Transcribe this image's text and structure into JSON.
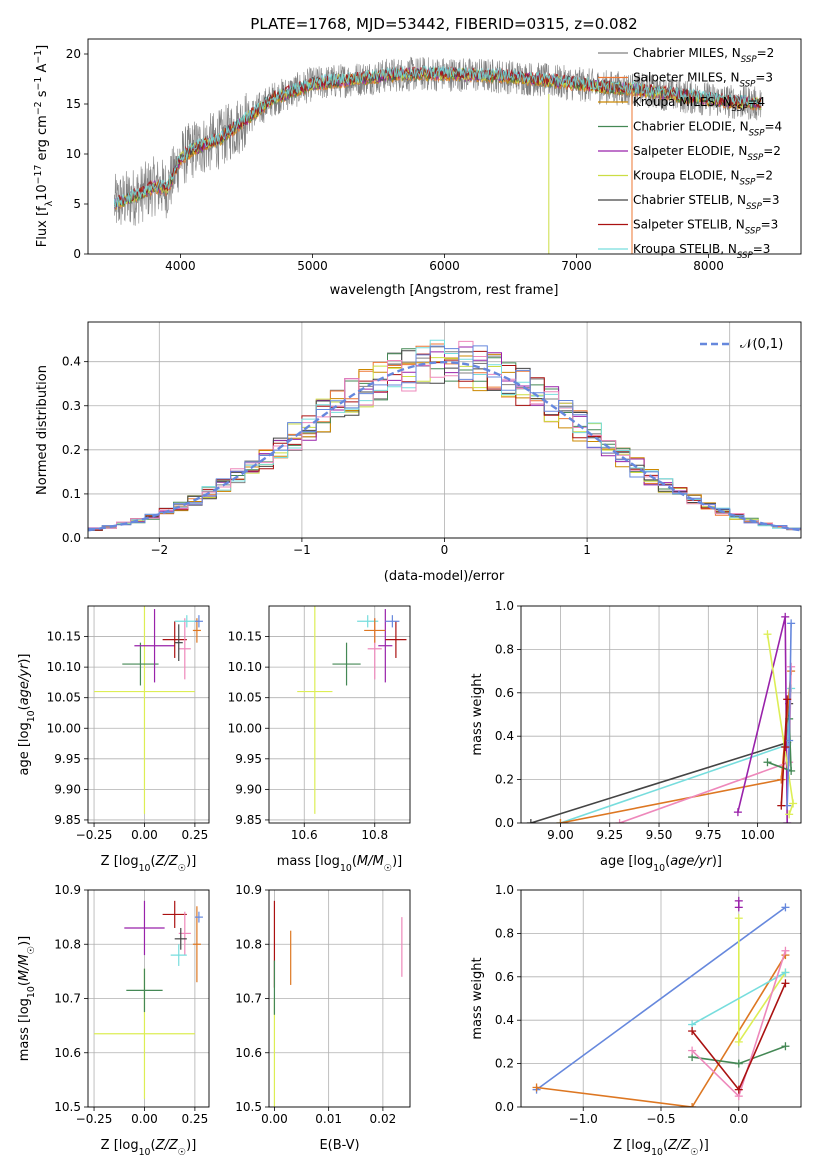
{
  "figure_title": "PLATE=1768, MJD=53442, FIBERID=0315, z=0.082",
  "model_colors": {
    "Chabrier MILES": "#808080",
    "Salpeter MILES": "#ee7733",
    "Kroupa MILES": "#cc8800",
    "Chabrier ELODIE": "#448855",
    "Salpeter ELODIE": "#9922aa",
    "Kroupa ELODIE": "#ccdd44",
    "Chabrier STELIB": "#444444",
    "Salpeter STELIB": "#aa1111",
    "Kroupa STELIB": "#77dddd",
    "pink": "#ee88bb",
    "blue": "#6688dd",
    "orange": "#dd7722",
    "lime": "#ddee55"
  },
  "chart_data": [
    {
      "id": "spectrum",
      "type": "line",
      "xlabel": "wavelength [Angstrom, rest frame]",
      "ylabel": "Flux [f_λ10^-17 erg cm^-2 s^-1 A^-1]",
      "xlim": [
        3300,
        8700
      ],
      "ylim": [
        0,
        21.5
      ],
      "xticks": [
        4000,
        5000,
        6000,
        7000,
        8000
      ],
      "yticks": [
        0,
        5,
        10,
        15,
        20
      ],
      "grid": false,
      "legend_position": "top-right",
      "legend": [
        {
          "name": "Chabrier MILES, N",
          "sub": "SSP",
          "suffix": "=2",
          "color": "#808080"
        },
        {
          "name": "Salpeter MILES, N",
          "sub": "SSP",
          "suffix": "=3",
          "color": "#ee7733"
        },
        {
          "name": "Kroupa MILES, N",
          "sub": "SSP",
          "suffix": "=4",
          "color": "#cc8800"
        },
        {
          "name": "Chabrier ELODIE, N",
          "sub": "SSP",
          "suffix": "=4",
          "color": "#448855"
        },
        {
          "name": "Salpeter ELODIE, N",
          "sub": "SSP",
          "suffix": "=2",
          "color": "#9922aa"
        },
        {
          "name": "Kroupa ELODIE, N",
          "sub": "SSP",
          "suffix": "=2",
          "color": "#ccdd44"
        },
        {
          "name": "Chabrier STELIB, N",
          "sub": "SSP",
          "suffix": "=3",
          "color": "#444444"
        },
        {
          "name": "Salpeter STELIB, N",
          "sub": "SSP",
          "suffix": "=3",
          "color": "#aa1111"
        },
        {
          "name": "Kroupa STELIB, N",
          "sub": "SSP",
          "suffix": "=3",
          "color": "#77dddd"
        }
      ],
      "continuum": {
        "x": [
          3500,
          3600,
          3700,
          3800,
          3900,
          4000,
          4100,
          4200,
          4300,
          4400,
          4500,
          4600,
          4700,
          4800,
          4900,
          5000,
          5200,
          5400,
          5600,
          5800,
          6000,
          6200,
          6400,
          6600,
          6800,
          7000,
          7200,
          7400,
          7600,
          7800,
          8000,
          8200,
          8400
        ],
        "y": [
          5.0,
          5.5,
          6.0,
          6.8,
          6.5,
          9.5,
          10.5,
          11.0,
          11.5,
          12.5,
          13.5,
          14.5,
          15.5,
          16.0,
          16.5,
          17.0,
          17.3,
          17.6,
          17.9,
          18.0,
          18.0,
          17.9,
          17.8,
          17.6,
          17.3,
          17.0,
          16.7,
          16.5,
          16.2,
          15.8,
          15.5,
          15.2,
          15.0
        ]
      },
      "dropouts": [
        {
          "x": 6790,
          "y_from": 16.0,
          "y_to": 0,
          "color": "#ccdd44"
        },
        {
          "x": 7420,
          "y_from": 16.5,
          "y_to": 0,
          "color": "#ee7733"
        }
      ]
    },
    {
      "id": "residual_histogram",
      "type": "histogram",
      "xlabel": "(data-model)/error",
      "ylabel": "Normed distribution",
      "xlim": [
        -2.5,
        2.5
      ],
      "ylim": [
        0,
        0.49
      ],
      "xticks": [
        -2,
        -1,
        0,
        1,
        2
      ],
      "yticks": [
        0.0,
        0.1,
        0.2,
        0.3,
        0.4
      ],
      "grid": true,
      "legend_position": "top-right",
      "legend": [
        {
          "name": "𝒩(0,1)",
          "color": "#6688dd",
          "style": "dashed"
        }
      ],
      "bin_width": 0.1,
      "bin_start": -2.5,
      "reference_curve": {
        "name": "𝒩(0,1)",
        "mean": 0,
        "sigma": 1,
        "color": "#6688dd"
      }
    },
    {
      "id": "age_vs_Z",
      "type": "errorbar",
      "xlabel": "Z [log10(Z/Z☉)]",
      "ylabel": "age [log10(age/yr)]",
      "xlim": [
        -0.28,
        0.32
      ],
      "ylim": [
        9.845,
        10.2
      ],
      "xticks": [
        -0.25,
        0.0,
        0.25
      ],
      "yticks": [
        9.85,
        9.9,
        9.95,
        10.0,
        10.05,
        10.1,
        10.15
      ],
      "grid": true,
      "points": [
        {
          "x": 0.0,
          "y": 10.06,
          "xerr": 0.25,
          "yerr": 0.2,
          "color": "#ddee55"
        },
        {
          "x": -0.02,
          "y": 10.105,
          "xerr": 0.09,
          "yerr": 0.035,
          "color": "#448855"
        },
        {
          "x": 0.05,
          "y": 10.135,
          "xerr": 0.1,
          "yerr": 0.06,
          "color": "#9922aa"
        },
        {
          "x": 0.15,
          "y": 10.145,
          "xerr": 0.06,
          "yerr": 0.03,
          "color": "#aa1111"
        },
        {
          "x": 0.2,
          "y": 10.13,
          "xerr": 0.03,
          "yerr": 0.05,
          "color": "#ee88bb"
        },
        {
          "x": 0.21,
          "y": 10.175,
          "xerr": 0.06,
          "yerr": 0.01,
          "color": "#77dddd"
        },
        {
          "x": 0.26,
          "y": 10.16,
          "xerr": 0.02,
          "yerr": 0.02,
          "color": "#dd7722"
        },
        {
          "x": 0.27,
          "y": 10.175,
          "xerr": 0.02,
          "yerr": 0.01,
          "color": "#6688dd"
        },
        {
          "x": 0.17,
          "y": 10.14,
          "xerr": 0.02,
          "yerr": 0.03,
          "color": "#444444"
        }
      ]
    },
    {
      "id": "age_vs_mass",
      "type": "errorbar",
      "xlabel": "mass [log10(M/M☉)]",
      "ylabel": "",
      "xlim": [
        10.5,
        10.9
      ],
      "ylim": [
        9.845,
        10.2
      ],
      "xticks": [
        10.6,
        10.8
      ],
      "yticks": [
        9.85,
        9.9,
        9.95,
        10.0,
        10.05,
        10.1,
        10.15
      ],
      "grid": true,
      "points": [
        {
          "x": 10.63,
          "y": 10.06,
          "xerr": 0.05,
          "yerr": 0.2,
          "color": "#ddee55"
        },
        {
          "x": 10.72,
          "y": 10.105,
          "xerr": 0.04,
          "yerr": 0.035,
          "color": "#448855"
        },
        {
          "x": 10.83,
          "y": 10.135,
          "xerr": 0.02,
          "yerr": 0.06,
          "color": "#9922aa"
        },
        {
          "x": 10.86,
          "y": 10.145,
          "xerr": 0.03,
          "yerr": 0.03,
          "color": "#aa1111"
        },
        {
          "x": 10.8,
          "y": 10.13,
          "xerr": 0.02,
          "yerr": 0.05,
          "color": "#ee88bb"
        },
        {
          "x": 10.78,
          "y": 10.175,
          "xerr": 0.03,
          "yerr": 0.01,
          "color": "#77dddd"
        },
        {
          "x": 10.8,
          "y": 10.16,
          "xerr": 0.03,
          "yerr": 0.02,
          "color": "#dd7722"
        },
        {
          "x": 10.85,
          "y": 10.175,
          "xerr": 0.02,
          "yerr": 0.01,
          "color": "#6688dd"
        }
      ]
    },
    {
      "id": "mass_weight_vs_age",
      "type": "line",
      "xlabel": "age [log10(age/yr)]",
      "ylabel": "mass weight",
      "xlim": [
        8.8,
        10.22
      ],
      "ylim": [
        0,
        1.0
      ],
      "xticks": [
        9.0,
        9.25,
        9.5,
        9.75,
        10.0
      ],
      "yticks": [
        0.0,
        0.2,
        0.4,
        0.6,
        0.8,
        1.0
      ],
      "grid": true,
      "series": [
        {
          "color": "#444444",
          "x": [
            8.85,
            10.15,
            10.16
          ],
          "y": [
            0.0,
            0.37,
            0.55
          ]
        },
        {
          "color": "#77dddd",
          "x": [
            9.0,
            10.15,
            10.17
          ],
          "y": [
            0.0,
            0.36,
            0.62
          ]
        },
        {
          "color": "#dd7722",
          "x": [
            9.0,
            10.12,
            10.17
          ],
          "y": [
            0.0,
            0.2,
            0.7
          ]
        },
        {
          "color": "#ee88bb",
          "x": [
            9.3,
            10.16,
            10.17
          ],
          "y": [
            0.0,
            0.28,
            0.72
          ]
        },
        {
          "color": "#9922aa",
          "x": [
            9.9,
            10.14,
            10.15
          ],
          "y": [
            0.05,
            0.95,
            0.0
          ]
        },
        {
          "color": "#ddee55",
          "x": [
            10.05,
            10.18,
            10.16
          ],
          "y": [
            0.87,
            0.09,
            0.04
          ]
        },
        {
          "color": "#448855",
          "x": [
            10.05,
            10.17,
            10.16
          ],
          "y": [
            0.28,
            0.24,
            0.48
          ]
        },
        {
          "color": "#6688dd",
          "x": [
            10.17,
            10.16,
            10.15
          ],
          "y": [
            0.92,
            0.38,
            0.08
          ]
        },
        {
          "color": "#aa1111",
          "x": [
            10.12,
            10.15,
            10.14
          ],
          "y": [
            0.08,
            0.57,
            0.35
          ]
        }
      ]
    },
    {
      "id": "mass_vs_Z",
      "type": "errorbar",
      "xlabel": "Z [log10(Z/Z☉)]",
      "ylabel": "mass [log10(M/M☉)]",
      "xlim": [
        -0.28,
        0.32
      ],
      "ylim": [
        10.5,
        10.9
      ],
      "xticks": [
        -0.25,
        0.0,
        0.25
      ],
      "yticks": [
        10.5,
        10.6,
        10.7,
        10.8,
        10.9
      ],
      "grid": true,
      "points": [
        {
          "x": 0.0,
          "y": 10.635,
          "xerr": 0.25,
          "yerr": 0.12,
          "color": "#ddee55"
        },
        {
          "x": 0.0,
          "y": 10.715,
          "xerr": 0.09,
          "yerr": 0.04,
          "color": "#448855"
        },
        {
          "x": 0.0,
          "y": 10.83,
          "xerr": 0.1,
          "yerr": 0.05,
          "color": "#9922aa"
        },
        {
          "x": 0.15,
          "y": 10.855,
          "xerr": 0.06,
          "yerr": 0.025,
          "color": "#aa1111"
        },
        {
          "x": 0.2,
          "y": 10.82,
          "xerr": 0.03,
          "yerr": 0.04,
          "color": "#ee88bb"
        },
        {
          "x": 0.17,
          "y": 10.78,
          "xerr": 0.04,
          "yerr": 0.02,
          "color": "#77dddd"
        },
        {
          "x": 0.26,
          "y": 10.8,
          "xerr": 0.02,
          "yerr": 0.07,
          "color": "#dd7722"
        },
        {
          "x": 0.27,
          "y": 10.85,
          "xerr": 0.02,
          "yerr": 0.01,
          "color": "#6688dd"
        },
        {
          "x": 0.18,
          "y": 10.81,
          "xerr": 0.03,
          "yerr": 0.02,
          "color": "#444444"
        }
      ]
    },
    {
      "id": "mass_vs_ebv",
      "type": "errorbar",
      "xlabel": "E(B-V)",
      "ylabel": "",
      "xlim": [
        -0.001,
        0.025
      ],
      "ylim": [
        10.5,
        10.9
      ],
      "xticks": [
        0.0,
        0.01,
        0.02
      ],
      "yticks": [
        10.5,
        10.6,
        10.7,
        10.8,
        10.9
      ],
      "grid": true,
      "points": [
        {
          "x": 0.0,
          "y": 10.8,
          "xerr": 0,
          "yerr": 0.08,
          "color": "#aa1111"
        },
        {
          "x": 0.0,
          "y": 10.6,
          "xerr": 0,
          "yerr": 0.1,
          "color": "#ddee55"
        },
        {
          "x": 0.0,
          "y": 10.72,
          "xerr": 0,
          "yerr": 0.05,
          "color": "#448855"
        },
        {
          "x": 0.003,
          "y": 10.775,
          "xerr": 0,
          "yerr": 0.05,
          "color": "#dd7722"
        },
        {
          "x": 0.0235,
          "y": 10.795,
          "xerr": 0,
          "yerr": 0.055,
          "color": "#ee88bb"
        }
      ]
    },
    {
      "id": "mass_weight_vs_Z",
      "type": "line",
      "xlabel": "Z [log10(Z/Z☉)]",
      "ylabel": "mass weight",
      "xlim": [
        -1.4,
        0.4
      ],
      "ylim": [
        0,
        1.0
      ],
      "xticks": [
        -1.0,
        -0.5,
        0.0
      ],
      "yticks": [
        0.0,
        0.2,
        0.4,
        0.6,
        0.8,
        1.0
      ],
      "grid": true,
      "series": [
        {
          "color": "#6688dd",
          "x": [
            -1.3,
            0.3
          ],
          "y": [
            0.08,
            0.92
          ]
        },
        {
          "color": "#dd7722",
          "x": [
            -1.3,
            -0.3,
            0.3
          ],
          "y": [
            0.09,
            0.0,
            0.7
          ]
        },
        {
          "color": "#ddee55",
          "x": [
            0.0,
            0.0,
            0.3
          ],
          "y": [
            0.87,
            0.3,
            0.62
          ]
        },
        {
          "color": "#77dddd",
          "x": [
            -0.3,
            0.3
          ],
          "y": [
            0.38,
            0.62
          ]
        },
        {
          "color": "#448855",
          "x": [
            -0.3,
            0.0,
            0.3
          ],
          "y": [
            0.23,
            0.2,
            0.28
          ]
        },
        {
          "color": "#ee88bb",
          "x": [
            -0.3,
            0.0,
            0.3
          ],
          "y": [
            0.26,
            0.05,
            0.72
          ]
        },
        {
          "color": "#aa1111",
          "x": [
            -0.3,
            0.0,
            0.3
          ],
          "y": [
            0.35,
            0.08,
            0.57
          ]
        },
        {
          "color": "#9922aa",
          "x": [
            0.0,
            0.0
          ],
          "y": [
            0.95,
            0.92
          ]
        }
      ]
    }
  ]
}
